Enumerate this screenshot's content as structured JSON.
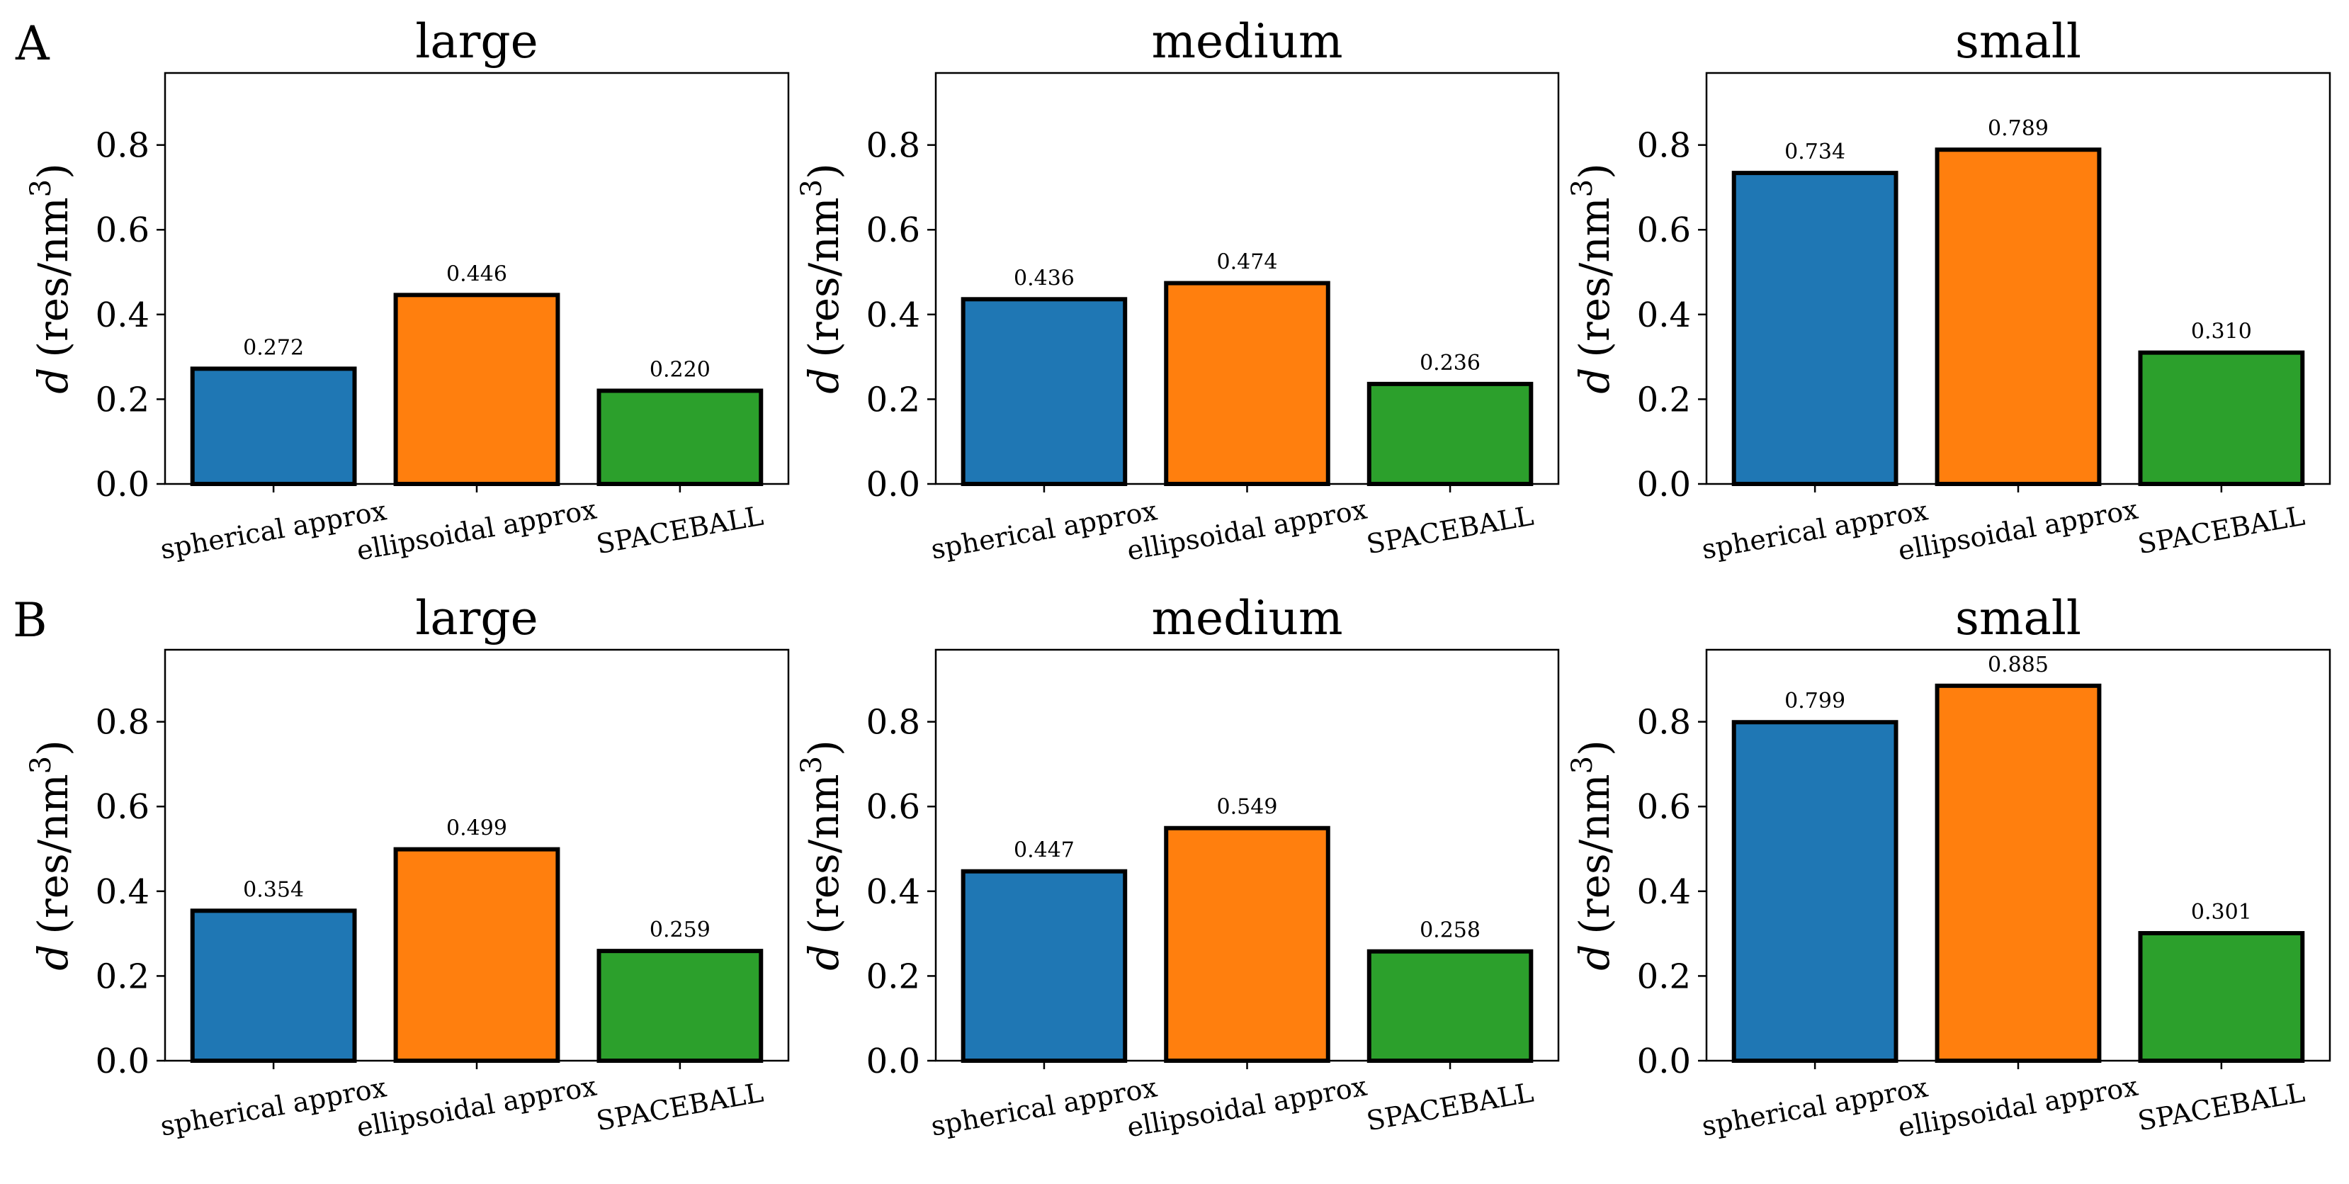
{
  "figure": {
    "rows": [
      {
        "label": "A"
      },
      {
        "label": "B"
      }
    ]
  },
  "chart_data": [
    {
      "type": "bar",
      "row": "A",
      "title": "large",
      "categories": [
        "spherical approx",
        "ellipsoidal approx",
        "SPACEBALL"
      ],
      "values": [
        0.272,
        0.446,
        0.22
      ],
      "value_labels": [
        "0.272",
        "0.446",
        "0.220"
      ],
      "colors": [
        "#1f77b4",
        "#ff7f0e",
        "#2ca02c"
      ],
      "ylabel_italic": "d",
      "ylabel_rest": "(res/nm",
      "ylabel_sup": "3",
      "ylabel_close": ")",
      "ylim": [
        0,
        0.97
      ],
      "yticks": [
        0.0,
        0.2,
        0.4,
        0.6,
        0.8
      ],
      "ytick_labels": [
        "0.0",
        "0.2",
        "0.4",
        "0.6",
        "0.8"
      ]
    },
    {
      "type": "bar",
      "row": "A",
      "title": "medium",
      "categories": [
        "spherical approx",
        "ellipsoidal approx",
        "SPACEBALL"
      ],
      "values": [
        0.436,
        0.474,
        0.236
      ],
      "value_labels": [
        "0.436",
        "0.474",
        "0.236"
      ],
      "colors": [
        "#1f77b4",
        "#ff7f0e",
        "#2ca02c"
      ],
      "ylabel_italic": "d",
      "ylabel_rest": "(res/nm",
      "ylabel_sup": "3",
      "ylabel_close": ")",
      "ylim": [
        0,
        0.97
      ],
      "yticks": [
        0.0,
        0.2,
        0.4,
        0.6,
        0.8
      ],
      "ytick_labels": [
        "0.0",
        "0.2",
        "0.4",
        "0.6",
        "0.8"
      ]
    },
    {
      "type": "bar",
      "row": "A",
      "title": "small",
      "categories": [
        "spherical approx",
        "ellipsoidal approx",
        "SPACEBALL"
      ],
      "values": [
        0.734,
        0.789,
        0.31
      ],
      "value_labels": [
        "0.734",
        "0.789",
        "0.310"
      ],
      "colors": [
        "#1f77b4",
        "#ff7f0e",
        "#2ca02c"
      ],
      "ylabel_italic": "d",
      "ylabel_rest": "(res/nm",
      "ylabel_sup": "3",
      "ylabel_close": ")",
      "ylim": [
        0,
        0.97
      ],
      "yticks": [
        0.0,
        0.2,
        0.4,
        0.6,
        0.8
      ],
      "ytick_labels": [
        "0.0",
        "0.2",
        "0.4",
        "0.6",
        "0.8"
      ]
    },
    {
      "type": "bar",
      "row": "B",
      "title": "large",
      "categories": [
        "spherical approx",
        "ellipsoidal approx",
        "SPACEBALL"
      ],
      "values": [
        0.354,
        0.499,
        0.259
      ],
      "value_labels": [
        "0.354",
        "0.499",
        "0.259"
      ],
      "colors": [
        "#1f77b4",
        "#ff7f0e",
        "#2ca02c"
      ],
      "ylabel_italic": "d",
      "ylabel_rest": "(res/nm",
      "ylabel_sup": "3",
      "ylabel_close": ")",
      "ylim": [
        0,
        0.97
      ],
      "yticks": [
        0.0,
        0.2,
        0.4,
        0.6,
        0.8
      ],
      "ytick_labels": [
        "0.0",
        "0.2",
        "0.4",
        "0.6",
        "0.8"
      ]
    },
    {
      "type": "bar",
      "row": "B",
      "title": "medium",
      "categories": [
        "spherical approx",
        "ellipsoidal approx",
        "SPACEBALL"
      ],
      "values": [
        0.447,
        0.549,
        0.258
      ],
      "value_labels": [
        "0.447",
        "0.549",
        "0.258"
      ],
      "colors": [
        "#1f77b4",
        "#ff7f0e",
        "#2ca02c"
      ],
      "ylabel_italic": "d",
      "ylabel_rest": "(res/nm",
      "ylabel_sup": "3",
      "ylabel_close": ")",
      "ylim": [
        0,
        0.97
      ],
      "yticks": [
        0.0,
        0.2,
        0.4,
        0.6,
        0.8
      ],
      "ytick_labels": [
        "0.0",
        "0.2",
        "0.4",
        "0.6",
        "0.8"
      ]
    },
    {
      "type": "bar",
      "row": "B",
      "title": "small",
      "categories": [
        "spherical approx",
        "ellipsoidal approx",
        "SPACEBALL"
      ],
      "values": [
        0.799,
        0.885,
        0.301
      ],
      "value_labels": [
        "0.799",
        "0.885",
        "0.301"
      ],
      "colors": [
        "#1f77b4",
        "#ff7f0e",
        "#2ca02c"
      ],
      "ylabel_italic": "d",
      "ylabel_rest": "(res/nm",
      "ylabel_sup": "3",
      "ylabel_close": ")",
      "ylim": [
        0,
        0.97
      ],
      "yticks": [
        0.0,
        0.2,
        0.4,
        0.6,
        0.8
      ],
      "ytick_labels": [
        "0.0",
        "0.2",
        "0.4",
        "0.6",
        "0.8"
      ]
    }
  ]
}
